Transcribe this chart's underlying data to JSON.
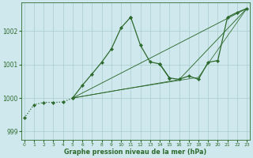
{
  "bg_color": "#cfe8ed",
  "grid_color": "#aacccc",
  "line_color": "#2d6a2d",
  "title": "Graphe pression niveau de la mer (hPa)",
  "xlim": [
    -0.3,
    23.3
  ],
  "ylim": [
    998.75,
    1002.85
  ],
  "yticks": [
    999,
    1000,
    1001,
    1002
  ],
  "series": [
    {
      "x": [
        0,
        1,
        2,
        3,
        4,
        5
      ],
      "y": [
        999.4,
        999.8,
        999.87,
        999.87,
        999.88,
        1000.0
      ],
      "ls": "dotted",
      "lw": 0.9,
      "marker": "D",
      "ms": 2.2
    },
    {
      "x": [
        5,
        6,
        7,
        8,
        9,
        10,
        11
      ],
      "y": [
        1000.0,
        1000.38,
        1000.72,
        1001.07,
        1001.47,
        1002.1,
        1002.42
      ],
      "ls": "solid",
      "lw": 0.9,
      "marker": "D",
      "ms": 2.2
    },
    {
      "x": [
        11,
        12,
        13,
        14,
        15
      ],
      "y": [
        1002.42,
        1001.58,
        1001.08,
        1001.02,
        1000.6
      ],
      "ls": "solid",
      "lw": 0.9,
      "marker": "D",
      "ms": 2.2
    },
    {
      "x": [
        14,
        15,
        16,
        17,
        18,
        19,
        20,
        21,
        22,
        23
      ],
      "y": [
        1001.02,
        1000.6,
        1000.56,
        1000.66,
        1000.56,
        1001.07,
        1001.12,
        1002.42,
        1002.56,
        1002.68
      ],
      "ls": "solid",
      "lw": 0.9,
      "marker": "D",
      "ms": 2.2
    },
    {
      "x": [
        5,
        23
      ],
      "y": [
        1000.0,
        1002.68
      ],
      "ls": "solid",
      "lw": 0.65,
      "marker": null,
      "ms": 0
    },
    {
      "x": [
        5,
        12,
        16,
        23
      ],
      "y": [
        1000.0,
        1000.35,
        1000.55,
        1002.68
      ],
      "ls": "solid",
      "lw": 0.65,
      "marker": null,
      "ms": 0
    },
    {
      "x": [
        5,
        10,
        15,
        18,
        23
      ],
      "y": [
        1000.0,
        1000.25,
        1000.48,
        1000.62,
        1002.68
      ],
      "ls": "solid",
      "lw": 0.55,
      "marker": null,
      "ms": 0
    }
  ]
}
